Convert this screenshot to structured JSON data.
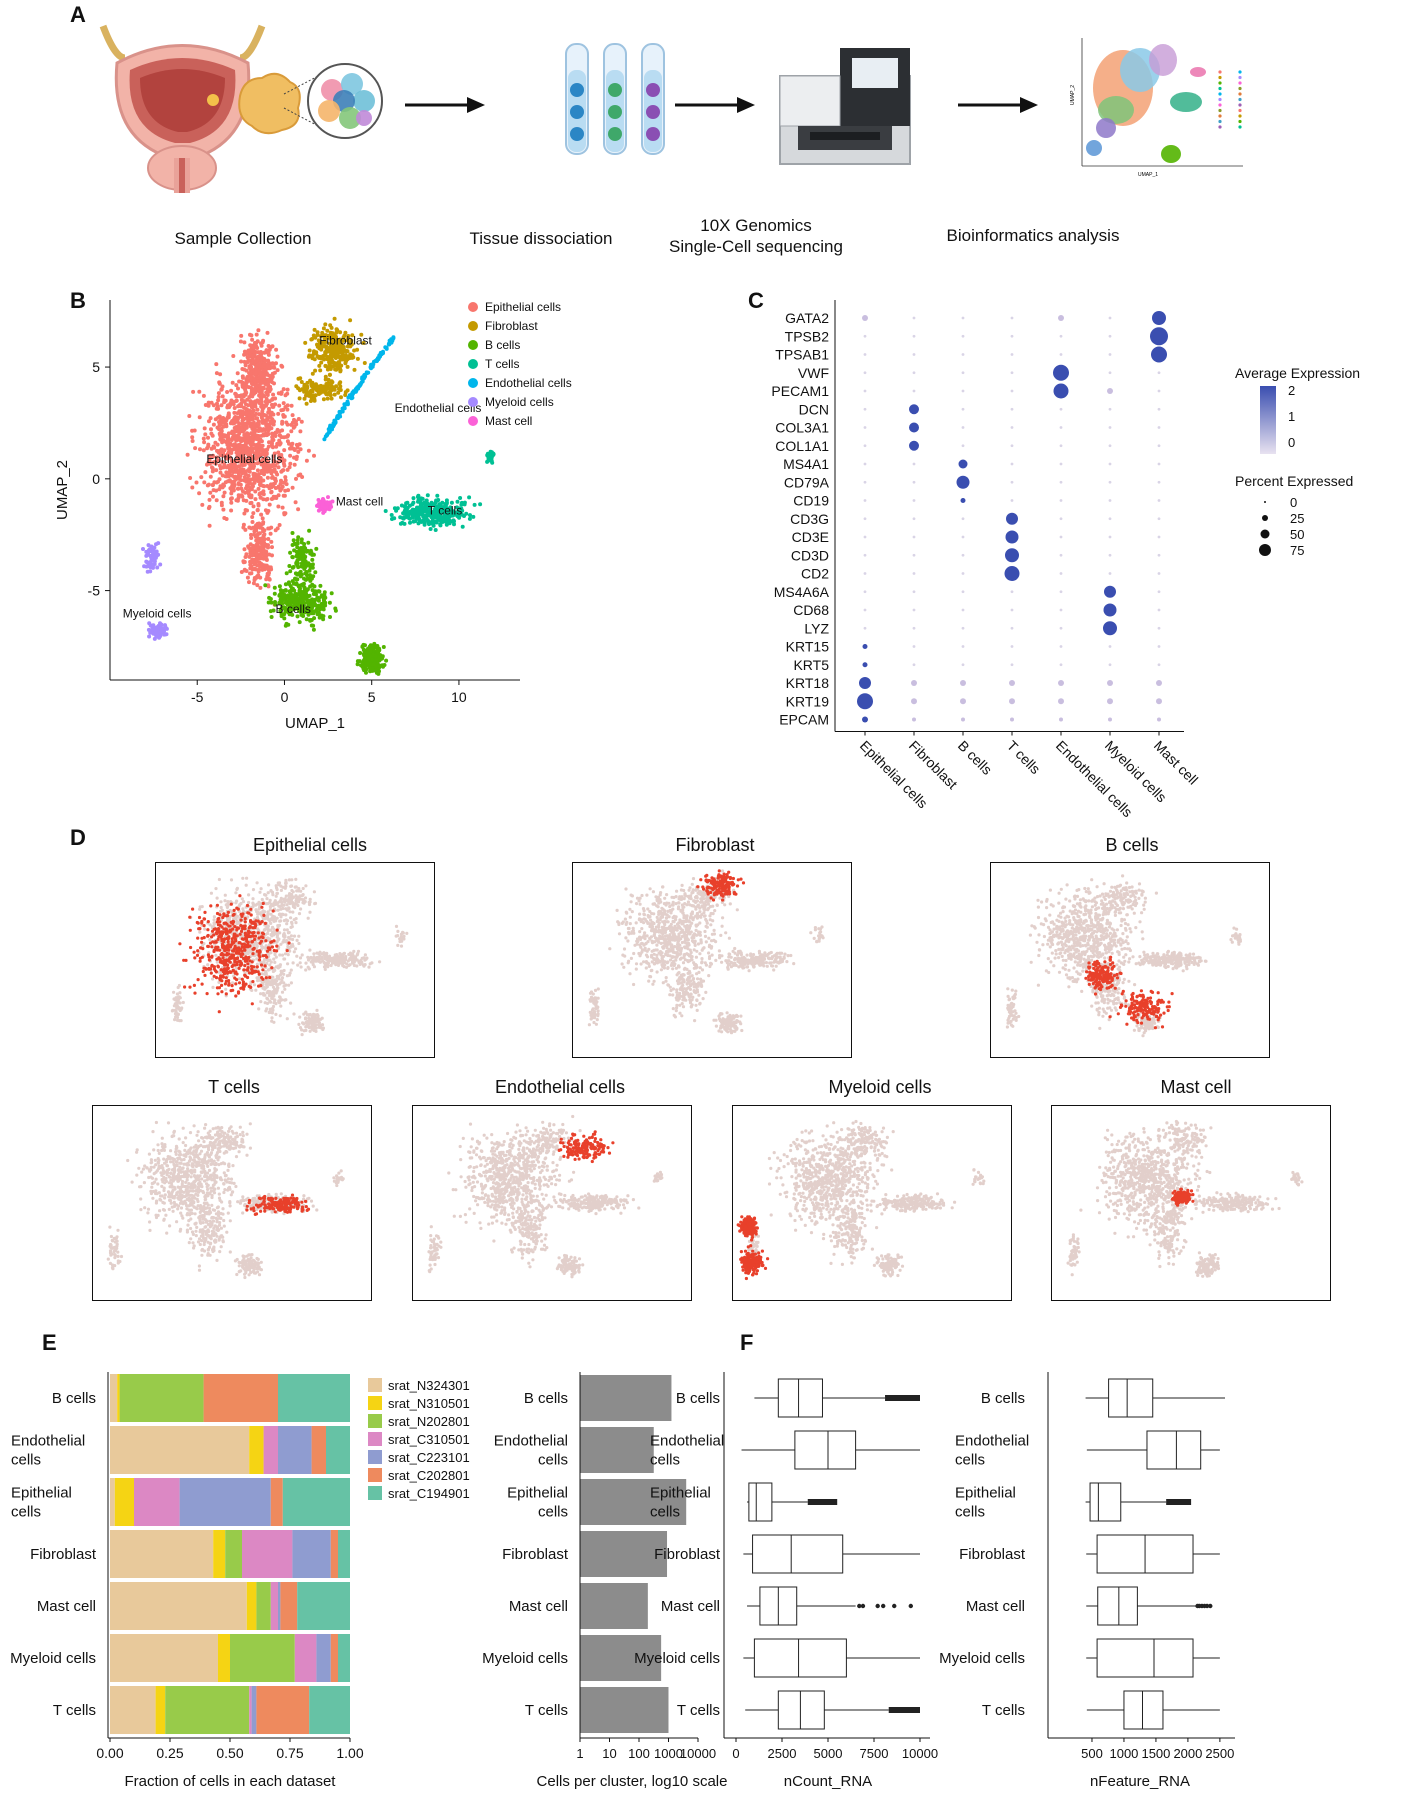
{
  "panelA": {
    "letter": "A",
    "steps": [
      {
        "l1": "Sample Collection",
        "l2": ""
      },
      {
        "l1": "Tissue dissociation",
        "l2": ""
      },
      {
        "l1": "10X Genomics",
        "l2": "Single-Cell sequencing"
      },
      {
        "l1": "Bioinformatics analysis",
        "l2": ""
      }
    ],
    "umap_thumb": {
      "y_label": "UMAP_2",
      "x_label": "UMAP_1"
    }
  },
  "panelB": {
    "letter": "B",
    "xlabel": "UMAP_1",
    "ylabel": "UMAP_2",
    "xticks": [
      -5,
      0,
      5,
      10
    ],
    "yticks": [
      5,
      0,
      -5
    ],
    "xlim": [
      -10,
      13.5
    ],
    "ylim": [
      -9,
      8
    ],
    "legend": [
      {
        "name": "Epithelial cells",
        "color": "#F8766D"
      },
      {
        "name": "Fibroblast",
        "color": "#C49A00"
      },
      {
        "name": "B cells",
        "color": "#53B400"
      },
      {
        "name": "T cells",
        "color": "#00C094"
      },
      {
        "name": "Endothelial cells",
        "color": "#00B6EB"
      },
      {
        "name": "Myeloid cells",
        "color": "#A58AFF"
      },
      {
        "name": "Mast cell",
        "color": "#FB61D7"
      }
    ],
    "cluster_labels": [
      "Fibroblast",
      "Endothelial cells",
      "Epithelial cells",
      "Mast cell",
      "T cells",
      "B cells",
      "Myeloid cells"
    ]
  },
  "panelC": {
    "letter": "C",
    "genes": [
      "GATA2",
      "TPSB2",
      "TPSAB1",
      "VWF",
      "PECAM1",
      "DCN",
      "COL3A1",
      "COL1A1",
      "MS4A1",
      "CD79A",
      "CD19",
      "CD3G",
      "CD3E",
      "CD3D",
      "CD2",
      "MS4A6A",
      "CD68",
      "LYZ",
      "KRT15",
      "KRT5",
      "KRT18",
      "KRT19",
      "EPCAM"
    ],
    "celltypes": [
      "Epithelial cells",
      "Fibroblast",
      "B cells",
      "T cells",
      "Endothelial cells",
      "Myeloid cells",
      "Mast cell"
    ],
    "avg_title": "Average Expression",
    "avg_ticks": [
      "2",
      "1",
      "0"
    ],
    "pct_title": "Percent Expressed",
    "pct_ticks": [
      "0",
      "25",
      "50",
      "75"
    ]
  },
  "panelD": {
    "letter": "D",
    "titles": [
      "Epithelial cells",
      "Fibroblast",
      "B cells",
      "T cells",
      "Endothelial cells",
      "Myeloid cells",
      "Mast cell"
    ]
  },
  "panelE": {
    "letter": "E",
    "rows": [
      "B cells",
      "Endothelial cells",
      "Epithelial cells",
      "Fibroblast",
      "Mast cell",
      "Myeloid cells",
      "T cells"
    ],
    "row_lines": [
      [
        "B cells"
      ],
      [
        "Endothelial",
        "cells"
      ],
      [
        "Epithelial",
        "cells"
      ],
      [
        "Fibroblast"
      ],
      [
        "Mast cell"
      ],
      [
        "Myeloid cells"
      ],
      [
        "T cells"
      ]
    ],
    "datasets": [
      {
        "name": "srat_N324301",
        "color": "#E8C99B"
      },
      {
        "name": "srat_N310501",
        "color": "#F5D414"
      },
      {
        "name": "srat_N202801",
        "color": "#98CB4A"
      },
      {
        "name": "srat_C310501",
        "color": "#DC88C4"
      },
      {
        "name": "srat_C223101",
        "color": "#8F9CD0"
      },
      {
        "name": "srat_C202801",
        "color": "#EE8A5E"
      },
      {
        "name": "srat_C194901",
        "color": "#66C2A5"
      }
    ],
    "fractions": [
      [
        0.03,
        0.01,
        0.35,
        0.0,
        0.0,
        0.31,
        0.3
      ],
      [
        0.58,
        0.06,
        0.0,
        0.06,
        0.14,
        0.06,
        0.1
      ],
      [
        0.02,
        0.08,
        0.0,
        0.19,
        0.38,
        0.05,
        0.28
      ],
      [
        0.43,
        0.05,
        0.07,
        0.21,
        0.16,
        0.03,
        0.05
      ],
      [
        0.57,
        0.04,
        0.06,
        0.03,
        0.01,
        0.07,
        0.22
      ],
      [
        0.45,
        0.05,
        0.27,
        0.09,
        0.06,
        0.03,
        0.05
      ],
      [
        0.19,
        0.04,
        0.35,
        0.01,
        0.02,
        0.22,
        0.17
      ]
    ],
    "frac_xticks": [
      "0.00",
      "0.25",
      "0.50",
      "0.75",
      "1.00"
    ],
    "frac_xlabel": "Fraction of cells in each dataset",
    "counts_log10": [
      3.1,
      2.5,
      3.6,
      2.95,
      2.3,
      2.75,
      3.0
    ],
    "count_xticks": [
      "1",
      "10",
      "100",
      "1000",
      "10000"
    ],
    "count_xlabel": "Cells per cluster, log10 scale"
  },
  "panelF": {
    "letter": "F",
    "ncount": {
      "xlabel": "nCount_RNA",
      "xticks": [
        "0",
        "2500",
        "5000",
        "7500",
        "10000"
      ],
      "boxes": [
        {
          "wl": 1000,
          "q1": 2300,
          "med": 3400,
          "q3": 4700,
          "wh": 8100,
          "out": [
            8100,
            10000
          ]
        },
        {
          "wl": 300,
          "q1": 3200,
          "med": 5000,
          "q3": 6500,
          "wh": 10000,
          "out": []
        },
        {
          "wl": 600,
          "q1": 700,
          "med": 1100,
          "q3": 1950,
          "wh": 3900,
          "out": [
            3900,
            5500
          ]
        },
        {
          "wl": 400,
          "q1": 900,
          "med": 3000,
          "q3": 5800,
          "wh": 10000,
          "out": []
        },
        {
          "wl": 600,
          "q1": 1300,
          "med": 2300,
          "q3": 3300,
          "wh": 6500,
          "out": [
            6700,
            6900,
            7700,
            8000,
            8600,
            9500
          ]
        },
        {
          "wl": 400,
          "q1": 1000,
          "med": 3400,
          "q3": 6000,
          "wh": 10000,
          "out": []
        },
        {
          "wl": 500,
          "q1": 2300,
          "med": 3500,
          "q3": 4800,
          "wh": 8300,
          "out": [
            8300,
            10000
          ]
        }
      ]
    },
    "nfeature": {
      "xlabel": "nFeature_RNA",
      "xticks": [
        "500",
        "1000",
        "1500",
        "2000",
        "2500"
      ],
      "boxes": [
        {
          "wl": 400,
          "q1": 760,
          "med": 1050,
          "q3": 1450,
          "wh": 2580,
          "out": []
        },
        {
          "wl": 420,
          "q1": 1360,
          "med": 1820,
          "q3": 2200,
          "wh": 2500,
          "out": []
        },
        {
          "wl": 400,
          "q1": 470,
          "med": 600,
          "q3": 950,
          "wh": 1660,
          "out": [
            1660,
            2050
          ]
        },
        {
          "wl": 410,
          "q1": 580,
          "med": 1330,
          "q3": 2080,
          "wh": 2500,
          "out": []
        },
        {
          "wl": 410,
          "q1": 590,
          "med": 920,
          "q3": 1210,
          "wh": 2150,
          "out": [
            2150,
            2180,
            2220,
            2260,
            2300,
            2350
          ]
        },
        {
          "wl": 410,
          "q1": 580,
          "med": 1470,
          "q3": 2080,
          "wh": 2500,
          "out": []
        },
        {
          "wl": 420,
          "q1": 1000,
          "med": 1290,
          "q3": 1610,
          "wh": 2500,
          "out": []
        }
      ]
    }
  }
}
